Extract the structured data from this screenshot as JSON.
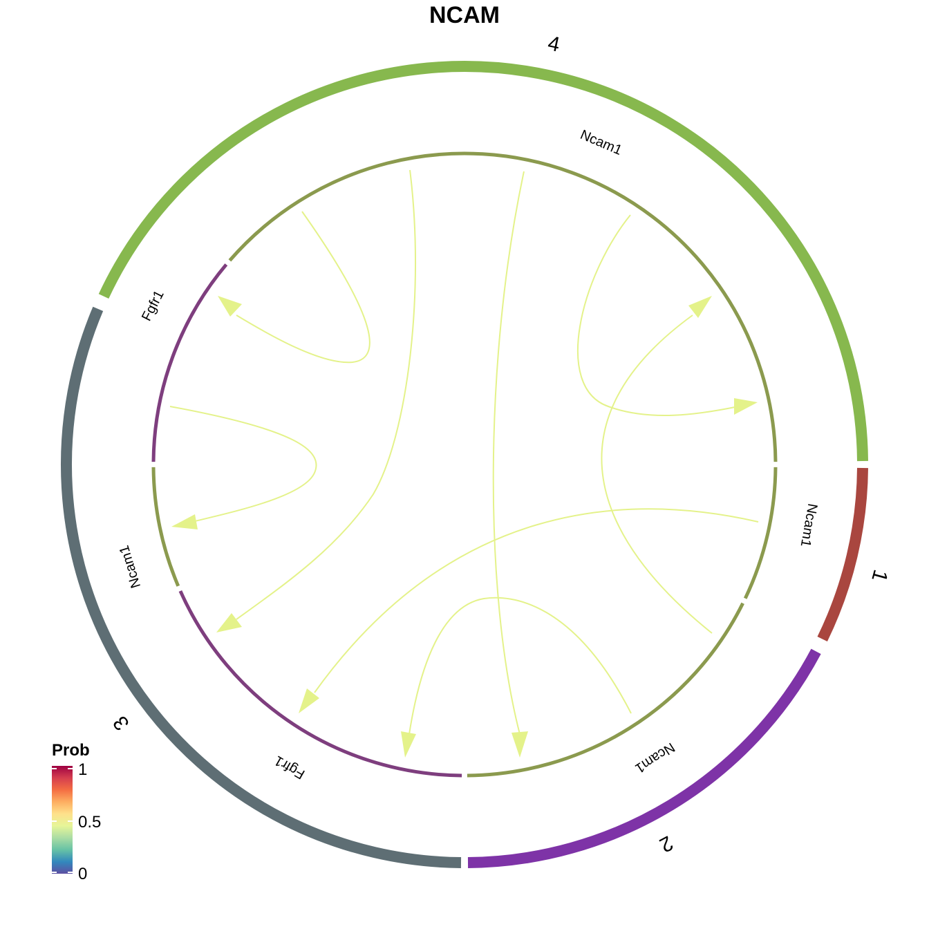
{
  "title": "NCAM",
  "groups": [
    {
      "id": "1",
      "label": "1",
      "color": "#A9463F"
    },
    {
      "id": "2",
      "label": "2",
      "color": "#7E33A7"
    },
    {
      "id": "3",
      "label": "3",
      "color": "#5E6E74"
    },
    {
      "id": "4",
      "label": "4",
      "color": "#87B84E"
    }
  ],
  "genes": [
    {
      "label": "Ncam1",
      "group": "1",
      "role": "ligand",
      "color": "#8B9A4E"
    },
    {
      "label": "Ncam1",
      "group": "2",
      "role": "ligand",
      "color": "#8B9A4E"
    },
    {
      "label": "Fgfr1",
      "group": "3",
      "role": "receptor",
      "color": "#7E3E7E"
    },
    {
      "label": "Ncam1",
      "group": "3",
      "role": "ligand",
      "color": "#8B9A4E"
    },
    {
      "label": "Fgfr1",
      "group": "4",
      "role": "receptor",
      "color": "#7E3E7E"
    },
    {
      "label": "Ncam1",
      "group": "4",
      "role": "ligand",
      "color": "#8B9A4E"
    }
  ],
  "links_color": "#E4F28A",
  "legend": {
    "title": "Prob",
    "ticks": [
      "1",
      "0.5",
      "0"
    ],
    "colors": [
      "#5E4FA2",
      "#3288BD",
      "#66C2A5",
      "#ABDDA4",
      "#E6F598",
      "#FEE08B",
      "#FDAE61",
      "#F46D43",
      "#D53E4F",
      "#9E0142"
    ]
  }
}
